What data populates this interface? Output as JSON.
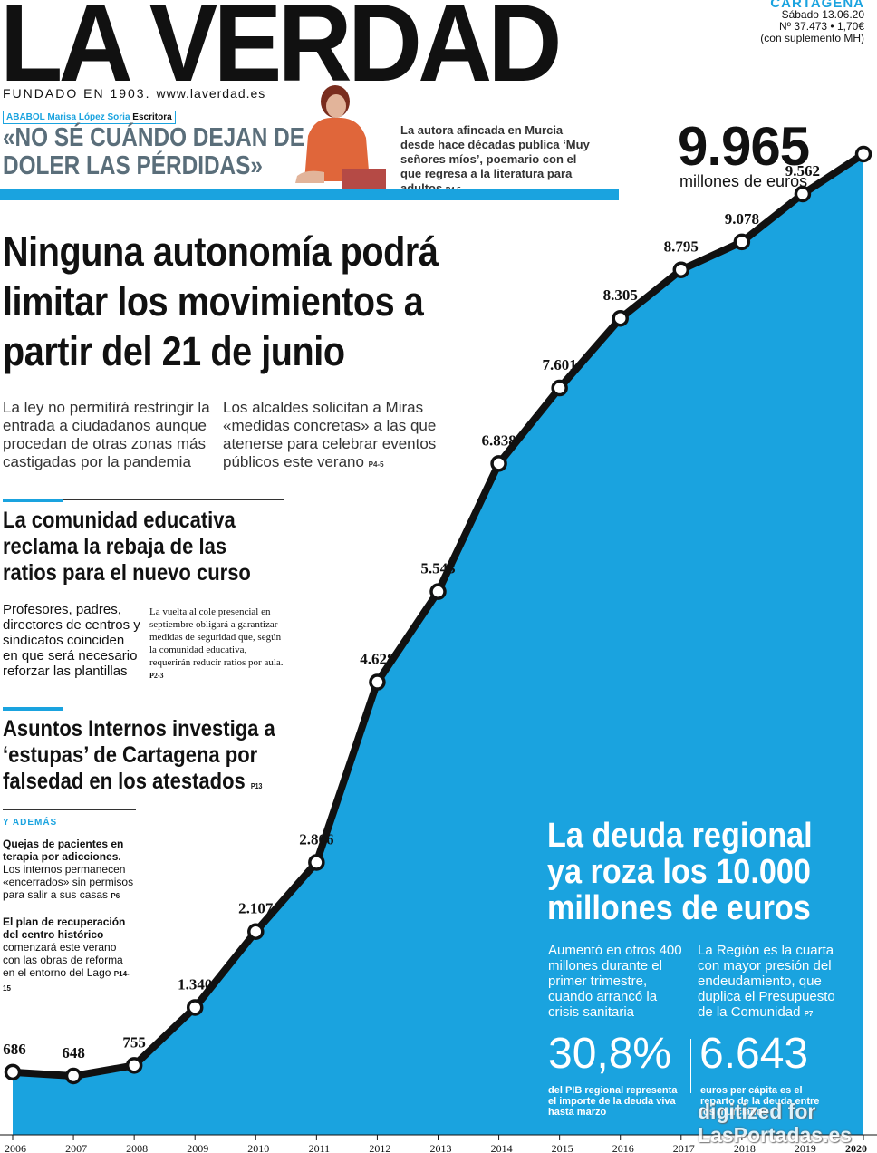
{
  "masthead": {
    "title": "LA VERDAD",
    "founded": "FUNDADO EN 1903.",
    "url": "www.laverdad.es"
  },
  "edition": {
    "city": "CARTAGENA",
    "date": "Sábado 13.06.20",
    "number": "Nº 37.473 • 1,70€",
    "supplement": "(con suplemento MH)"
  },
  "interview": {
    "section": "ABABOL",
    "name": "Marisa López Soria",
    "role": "Escritora",
    "quote": "«NO SÉ CUÁNDO DEJAN DE DOLER LAS PÉRDIDAS»",
    "desc": "La autora afincada en Murcia desde hace décadas publica ‘Muy señores míos’, poemario con el que regresa a la literatura para adultos",
    "page": "P4-5"
  },
  "main": {
    "headline": "Ninguna autonomía podrá limitar los movimientos a partir del 21 de junio",
    "lead1": "La ley no permitirá restringir la entrada a ciudadanos aunque procedan de otras zonas más castigadas por la pandemia",
    "lead2": "Los alcaldes solicitan a Miras «medidas concretas» a las que atenerse para celebrar eventos públicos este verano",
    "lead2_page": "P4-5"
  },
  "education": {
    "headline": "La comunidad educativa reclama la rebaja de las ratios para el nuevo curso",
    "lead": "Profesores, padres, directores de centros y sindicatos coinciden en que será necesario reforzar las plantillas",
    "body": "La vuelta al cole presencial en septiembre obligará a garantizar medidas de seguridad que, según la comunidad educativa, requerirán reducir ratios por aula.",
    "page": "P2-3"
  },
  "police": {
    "headline": "Asuntos Internos investiga a ‘estupas’ de Cartagena por falsedad en los atestados",
    "page": "P13"
  },
  "also": {
    "label": "Y ADEMÁS",
    "items": [
      {
        "title": "Quejas de pacientes en terapia por adicciones.",
        "text": "Los internos permanecen «encerrados» sin permisos para salir a sus casas",
        "page": "P6"
      },
      {
        "title": "El plan de recuperación del centro histórico",
        "text": "comenzará este verano con las obras de reforma en el entorno del Lago",
        "page": "P14-15"
      }
    ]
  },
  "debt": {
    "big_value": "9.965",
    "big_unit": "millones de euros",
    "headline": "La deuda regional ya roza los 10.000 millones de euros",
    "lead1": "Aumentó en otros 400 millones durante el primer trimestre, cuando arrancó la crisis sanitaria",
    "lead2": "La Región es la cuarta con mayor presión del endeudamiento, que duplica el Presupuesto de la Comunidad",
    "lead2_page": "P7",
    "stat1": "30,8%",
    "stat1_desc": "del PIB regional representa el importe de la deuda viva hasta marzo",
    "stat2": "6.643",
    "stat2_desc": "euros per cápita es el reparto de la deuda entre los murcianos"
  },
  "watermark": {
    "line1": "digitized for",
    "line2": "LasPortadas.es"
  },
  "colors": {
    "accent": "#1aa3df",
    "line": "#111111"
  },
  "chart_data": {
    "type": "area",
    "x": [
      "2006",
      "2007",
      "2008",
      "2009",
      "2010",
      "2011",
      "2012",
      "2013",
      "2014",
      "2015",
      "2016",
      "2017",
      "2018",
      "2019",
      "2020"
    ],
    "values": [
      686,
      648,
      755,
      1340,
      2107,
      2806,
      4628,
      5543,
      6838,
      7601,
      8305,
      8795,
      9078,
      9562,
      9965
    ],
    "labels": [
      "686",
      "648",
      "755",
      "1.340",
      "2.107",
      "2.806",
      "4.628",
      "5.543",
      "6.838",
      "7.601",
      "8.305",
      "8.795",
      "9.078",
      "9.562",
      ""
    ],
    "unit": "millones de euros",
    "ylim": [
      0,
      10500
    ]
  }
}
